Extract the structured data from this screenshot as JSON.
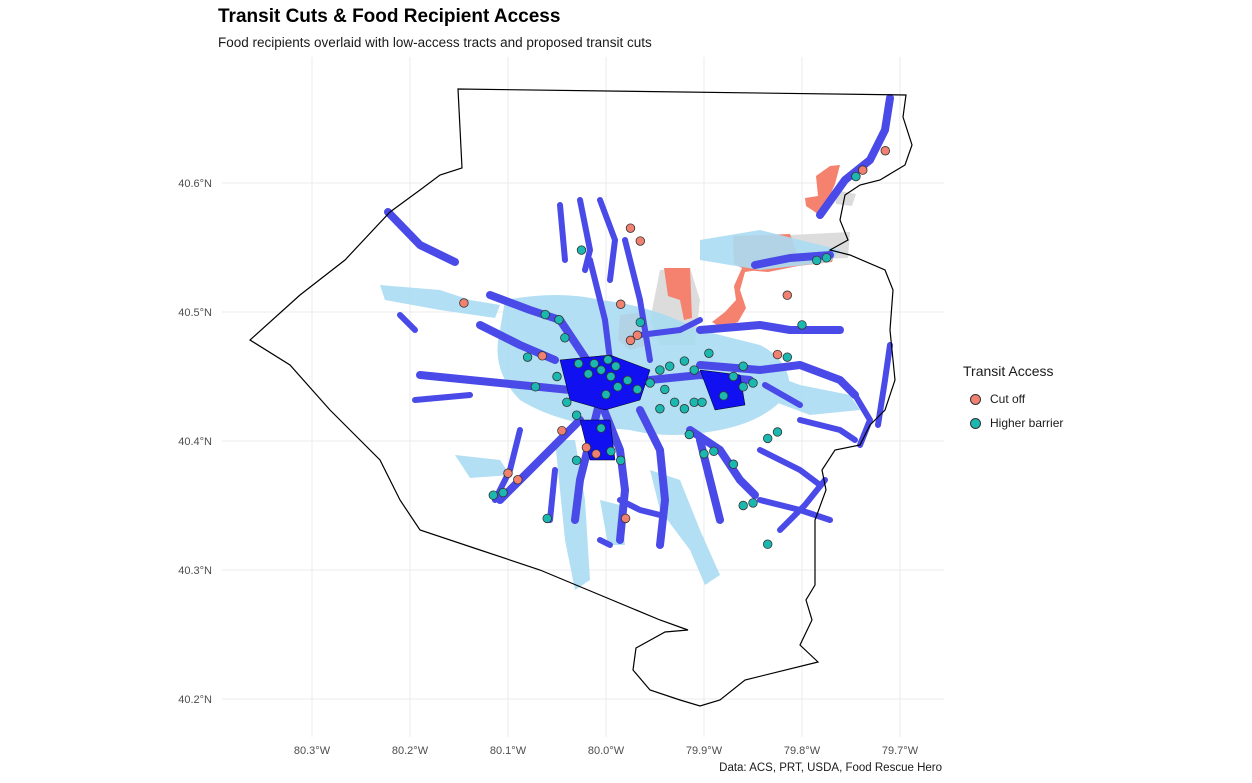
{
  "title": "Transit Cuts & Food Recipient Access",
  "subtitle": "Food recipients overlaid with low-access tracts and proposed transit cuts",
  "caption": "Data: ACS, PRT, USDA, Food Rescue Hero",
  "legend": {
    "title": "Transit Access",
    "items": [
      {
        "label": "Cut off",
        "color": "#f08070"
      },
      {
        "label": "Higher barrier",
        "color": "#1bb8b0"
      }
    ]
  },
  "axes": {
    "x_ticks": [
      "80.3°W",
      "80.2°W",
      "80.1°W",
      "80.0°W",
      "79.9°W",
      "79.8°W",
      "79.7°W"
    ],
    "y_ticks": [
      "40.6°N",
      "40.5°N",
      "40.4°N",
      "40.3°N",
      "40.2°N"
    ],
    "x_values": [
      -80.3,
      -80.2,
      -80.1,
      -80.0,
      -79.9,
      -79.8,
      -79.7
    ],
    "y_values": [
      40.6,
      40.5,
      40.4,
      40.3,
      40.2
    ]
  },
  "colors": {
    "county_outline": "#000000",
    "low_access_tract": "#aadcf2",
    "transit_corridor": "#4a4ae8",
    "transit_corridor_dense": "#1010f0",
    "transit_cut_tract": "#f4826e",
    "other_tract": "#dcdcdc",
    "grid": "#ebebeb"
  },
  "points": [
    {
      "lon": -80.145,
      "lat": 40.507,
      "access": "Cut off"
    },
    {
      "lon": -80.065,
      "lat": 40.466,
      "access": "Cut off"
    },
    {
      "lon": -80.08,
      "lat": 40.465,
      "access": "Higher barrier"
    },
    {
      "lon": -80.072,
      "lat": 40.442,
      "access": "Higher barrier"
    },
    {
      "lon": -80.062,
      "lat": 40.498,
      "access": "Higher barrier"
    },
    {
      "lon": -80.048,
      "lat": 40.494,
      "access": "Higher barrier"
    },
    {
      "lon": -80.042,
      "lat": 40.48,
      "access": "Higher barrier"
    },
    {
      "lon": -80.025,
      "lat": 40.548,
      "access": "Higher barrier"
    },
    {
      "lon": -79.975,
      "lat": 40.565,
      "access": "Cut off"
    },
    {
      "lon": -79.965,
      "lat": 40.555,
      "access": "Cut off"
    },
    {
      "lon": -79.985,
      "lat": 40.506,
      "access": "Cut off"
    },
    {
      "lon": -79.965,
      "lat": 40.492,
      "access": "Higher barrier"
    },
    {
      "lon": -79.975,
      "lat": 40.478,
      "access": "Cut off"
    },
    {
      "lon": -79.968,
      "lat": 40.482,
      "access": "Cut off"
    },
    {
      "lon": -80.028,
      "lat": 40.46,
      "access": "Higher barrier"
    },
    {
      "lon": -80.018,
      "lat": 40.452,
      "access": "Higher barrier"
    },
    {
      "lon": -80.005,
      "lat": 40.455,
      "access": "Higher barrier"
    },
    {
      "lon": -79.995,
      "lat": 40.45,
      "access": "Higher barrier"
    },
    {
      "lon": -79.988,
      "lat": 40.442,
      "access": "Higher barrier"
    },
    {
      "lon": -79.978,
      "lat": 40.447,
      "access": "Higher barrier"
    },
    {
      "lon": -79.968,
      "lat": 40.44,
      "access": "Higher barrier"
    },
    {
      "lon": -79.955,
      "lat": 40.445,
      "access": "Higher barrier"
    },
    {
      "lon": -79.945,
      "lat": 40.455,
      "access": "Higher barrier"
    },
    {
      "lon": -79.935,
      "lat": 40.458,
      "access": "Higher barrier"
    },
    {
      "lon": -79.92,
      "lat": 40.462,
      "access": "Higher barrier"
    },
    {
      "lon": -79.91,
      "lat": 40.455,
      "access": "Higher barrier"
    },
    {
      "lon": -79.895,
      "lat": 40.468,
      "access": "Higher barrier"
    },
    {
      "lon": -79.87,
      "lat": 40.45,
      "access": "Higher barrier"
    },
    {
      "lon": -79.86,
      "lat": 40.442,
      "access": "Higher barrier"
    },
    {
      "lon": -79.85,
      "lat": 40.445,
      "access": "Higher barrier"
    },
    {
      "lon": -79.825,
      "lat": 40.467,
      "access": "Cut off"
    },
    {
      "lon": -79.815,
      "lat": 40.465,
      "access": "Higher barrier"
    },
    {
      "lon": -79.8,
      "lat": 40.49,
      "access": "Higher barrier"
    },
    {
      "lon": -79.815,
      "lat": 40.513,
      "access": "Cut off"
    },
    {
      "lon": -79.785,
      "lat": 40.54,
      "access": "Higher barrier"
    },
    {
      "lon": -79.775,
      "lat": 40.542,
      "access": "Higher barrier"
    },
    {
      "lon": -79.745,
      "lat": 40.605,
      "access": "Higher barrier"
    },
    {
      "lon": -79.738,
      "lat": 40.61,
      "access": "Cut off"
    },
    {
      "lon": -79.715,
      "lat": 40.625,
      "access": "Cut off"
    },
    {
      "lon": -79.91,
      "lat": 40.43,
      "access": "Higher barrier"
    },
    {
      "lon": -79.92,
      "lat": 40.425,
      "access": "Higher barrier"
    },
    {
      "lon": -79.93,
      "lat": 40.43,
      "access": "Higher barrier"
    },
    {
      "lon": -79.945,
      "lat": 40.425,
      "access": "Higher barrier"
    },
    {
      "lon": -79.915,
      "lat": 40.405,
      "access": "Higher barrier"
    },
    {
      "lon": -79.9,
      "lat": 40.39,
      "access": "Higher barrier"
    },
    {
      "lon": -79.89,
      "lat": 40.392,
      "access": "Higher barrier"
    },
    {
      "lon": -79.87,
      "lat": 40.382,
      "access": "Higher barrier"
    },
    {
      "lon": -79.835,
      "lat": 40.402,
      "access": "Higher barrier"
    },
    {
      "lon": -79.825,
      "lat": 40.407,
      "access": "Higher barrier"
    },
    {
      "lon": -79.835,
      "lat": 40.32,
      "access": "Higher barrier"
    },
    {
      "lon": -79.86,
      "lat": 40.35,
      "access": "Higher barrier"
    },
    {
      "lon": -79.85,
      "lat": 40.352,
      "access": "Higher barrier"
    },
    {
      "lon": -80.045,
      "lat": 40.408,
      "access": "Cut off"
    },
    {
      "lon": -80.04,
      "lat": 40.43,
      "access": "Higher barrier"
    },
    {
      "lon": -80.03,
      "lat": 40.42,
      "access": "Higher barrier"
    },
    {
      "lon": -80.02,
      "lat": 40.395,
      "access": "Cut off"
    },
    {
      "lon": -80.01,
      "lat": 40.39,
      "access": "Cut off"
    },
    {
      "lon": -79.995,
      "lat": 40.392,
      "access": "Higher barrier"
    },
    {
      "lon": -79.985,
      "lat": 40.385,
      "access": "Higher barrier"
    },
    {
      "lon": -80.005,
      "lat": 40.41,
      "access": "Higher barrier"
    },
    {
      "lon": -80.03,
      "lat": 40.385,
      "access": "Higher barrier"
    },
    {
      "lon": -80.1,
      "lat": 40.375,
      "access": "Cut off"
    },
    {
      "lon": -80.09,
      "lat": 40.37,
      "access": "Cut off"
    },
    {
      "lon": -80.105,
      "lat": 40.36,
      "access": "Higher barrier"
    },
    {
      "lon": -80.115,
      "lat": 40.358,
      "access": "Higher barrier"
    },
    {
      "lon": -80.06,
      "lat": 40.34,
      "access": "Higher barrier"
    },
    {
      "lon": -79.98,
      "lat": 40.34,
      "access": "Cut off"
    },
    {
      "lon": -80.012,
      "lat": 40.46,
      "access": "Higher barrier"
    },
    {
      "lon": -79.998,
      "lat": 40.463,
      "access": "Higher barrier"
    },
    {
      "lon": -79.99,
      "lat": 40.458,
      "access": "Higher barrier"
    },
    {
      "lon": -80.0,
      "lat": 40.436,
      "access": "Higher barrier"
    },
    {
      "lon": -79.902,
      "lat": 40.43,
      "access": "Higher barrier"
    },
    {
      "lon": -79.88,
      "lat": 40.435,
      "access": "Higher barrier"
    },
    {
      "lon": -79.86,
      "lat": 40.458,
      "access": "Higher barrier"
    },
    {
      "lon": -80.05,
      "lat": 40.45,
      "access": "Higher barrier"
    },
    {
      "lon": -79.94,
      "lat": 40.44,
      "access": "Higher barrier"
    }
  ]
}
